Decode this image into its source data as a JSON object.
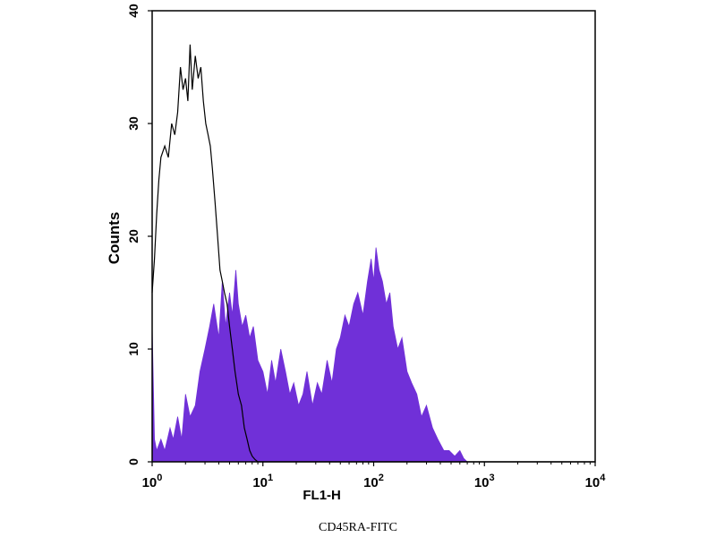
{
  "caption": "CD45RA-FITC",
  "chart_data": {
    "type": "area",
    "xlabel": "FL1-H",
    "ylabel": "Counts",
    "x_scale": "log",
    "xlim": [
      1,
      10000
    ],
    "ylim": [
      0,
      40
    ],
    "x_ticks": [
      {
        "value": 1,
        "base": "10",
        "exp": "0"
      },
      {
        "value": 10,
        "base": "10",
        "exp": "1"
      },
      {
        "value": 100,
        "base": "10",
        "exp": "2"
      },
      {
        "value": 1000,
        "base": "10",
        "exp": "3"
      },
      {
        "value": 10000,
        "base": "10",
        "exp": "4"
      }
    ],
    "y_ticks": [
      0,
      10,
      20,
      30,
      40
    ],
    "grid": false,
    "series": [
      {
        "style": "filled",
        "color": "#7030d8",
        "x": [
          1.0,
          1.05,
          1.1,
          1.2,
          1.3,
          1.45,
          1.55,
          1.7,
          1.85,
          2.0,
          2.2,
          2.45,
          2.7,
          3.0,
          3.3,
          3.6,
          4.0,
          4.3,
          4.6,
          5.0,
          5.3,
          5.7,
          6.0,
          6.5,
          7.0,
          7.6,
          8.2,
          9.0,
          10.0,
          11.0,
          12.0,
          13.0,
          14.5,
          16.0,
          17.5,
          19.0,
          21.0,
          23.0,
          25.0,
          28.0,
          31.0,
          34.0,
          38.0,
          42.0,
          46.0,
          50.0,
          55.0,
          60.0,
          66.0,
          72.0,
          80.0,
          88.0,
          95.0,
          100.0,
          105.0,
          112.0,
          120.0,
          130.0,
          140.0,
          150.0,
          165.0,
          180.0,
          200.0,
          220.0,
          245.0,
          270.0,
          300.0,
          340.0,
          380.0,
          430.0,
          480.0,
          540.0,
          600.0,
          650.0,
          700.0,
          1000.0,
          10000.0
        ],
        "y": [
          12,
          2,
          1,
          2,
          1,
          3,
          2,
          4,
          2,
          6,
          4,
          5,
          8,
          10,
          12,
          14,
          11,
          16,
          12,
          15,
          13,
          17,
          14,
          12,
          13,
          11,
          12,
          9,
          8,
          6,
          9,
          7,
          10,
          8,
          6,
          7,
          5,
          6,
          8,
          5,
          7,
          6,
          9,
          7,
          10,
          11,
          13,
          12,
          14,
          15,
          13,
          16,
          18,
          16,
          19,
          17,
          16,
          14,
          15,
          12,
          10,
          11,
          8,
          7,
          6,
          4,
          5,
          3,
          2,
          1,
          1,
          0.5,
          1,
          0.3,
          0,
          0,
          0
        ]
      },
      {
        "style": "outline",
        "color": "#000000",
        "x": [
          1.0,
          1.05,
          1.1,
          1.15,
          1.2,
          1.3,
          1.4,
          1.5,
          1.6,
          1.7,
          1.8,
          1.9,
          2.0,
          2.1,
          2.2,
          2.3,
          2.45,
          2.6,
          2.75,
          2.9,
          3.05,
          3.2,
          3.35,
          3.5,
          3.7,
          3.9,
          4.1,
          4.3,
          4.5,
          4.75,
          5.0,
          5.3,
          5.6,
          6.0,
          6.4,
          6.8,
          7.2,
          7.6,
          8.0,
          8.5,
          9.0,
          10.0,
          10000.0
        ],
        "y": [
          15,
          18,
          22,
          25,
          27,
          28,
          27,
          30,
          29,
          31,
          35,
          33,
          34,
          32,
          37,
          33,
          36,
          34,
          35,
          32,
          30,
          29,
          28,
          26,
          23,
          20,
          17,
          16,
          15,
          14,
          12,
          10,
          8,
          6,
          5,
          3,
          2,
          1,
          0.5,
          0.2,
          0,
          0,
          0
        ]
      }
    ]
  }
}
